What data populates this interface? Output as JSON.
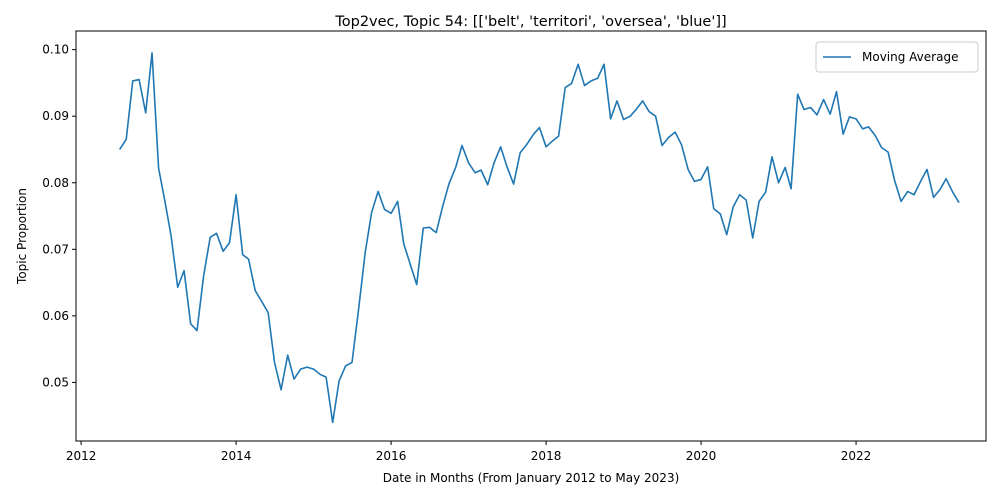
{
  "chart_data": {
    "type": "line",
    "title": "Top2vec, Topic 54: [['belt', 'territori', 'oversea', 'blue']]",
    "xlabel": "Date in Months (From January 2012 to May 2023)",
    "ylabel": "Topic Proportion",
    "xlim": [
      "2011-12-08",
      "2023-09-05"
    ],
    "ylim": [
      0.0412,
      0.1028
    ],
    "x_ticks": [
      "2012",
      "2014",
      "2016",
      "2018",
      "2020",
      "2022"
    ],
    "y_ticks": [
      "0.05",
      "0.06",
      "0.07",
      "0.08",
      "0.09",
      "0.10"
    ],
    "grid": false,
    "legend_position": "top-right",
    "color": "#1f77b4",
    "series": [
      {
        "name": "Moving Average",
        "x": [
          "2012-07",
          "2012-08",
          "2012-09",
          "2012-10",
          "2012-11",
          "2012-12",
          "2013-01",
          "2013-02",
          "2013-03",
          "2013-04",
          "2013-05",
          "2013-06",
          "2013-07",
          "2013-08",
          "2013-09",
          "2013-10",
          "2013-11",
          "2013-12",
          "2014-01",
          "2014-02",
          "2014-03",
          "2014-04",
          "2014-05",
          "2014-06",
          "2014-07",
          "2014-08",
          "2014-09",
          "2014-10",
          "2014-11",
          "2014-12",
          "2015-01",
          "2015-02",
          "2015-03",
          "2015-04",
          "2015-05",
          "2015-06",
          "2015-07",
          "2015-08",
          "2015-09",
          "2015-10",
          "2015-11",
          "2015-12",
          "2016-01",
          "2016-02",
          "2016-03",
          "2016-04",
          "2016-05",
          "2016-06",
          "2016-07",
          "2016-08",
          "2016-09",
          "2016-10",
          "2016-11",
          "2016-12",
          "2017-01",
          "2017-02",
          "2017-03",
          "2017-04",
          "2017-05",
          "2017-06",
          "2017-07",
          "2017-08",
          "2017-09",
          "2017-10",
          "2017-11",
          "2017-12",
          "2018-01",
          "2018-02",
          "2018-03",
          "2018-04",
          "2018-05",
          "2018-06",
          "2018-07",
          "2018-08",
          "2018-09",
          "2018-10",
          "2018-11",
          "2018-12",
          "2019-01",
          "2019-02",
          "2019-03",
          "2019-04",
          "2019-05",
          "2019-06",
          "2019-07",
          "2019-08",
          "2019-09",
          "2019-10",
          "2019-11",
          "2019-12",
          "2020-01",
          "2020-02",
          "2020-03",
          "2020-04",
          "2020-05",
          "2020-06",
          "2020-07",
          "2020-08",
          "2020-09",
          "2020-10",
          "2020-11",
          "2020-12",
          "2021-01",
          "2021-02",
          "2021-03",
          "2021-04",
          "2021-05",
          "2021-06",
          "2021-07",
          "2021-08",
          "2021-09",
          "2021-10",
          "2021-11",
          "2021-12",
          "2022-01",
          "2022-02",
          "2022-03",
          "2022-04",
          "2022-05",
          "2022-06",
          "2022-07",
          "2022-08",
          "2022-09",
          "2022-10",
          "2022-11",
          "2022-12",
          "2023-01",
          "2023-02",
          "2023-03",
          "2023-04",
          "2023-05"
        ],
        "values": [
          0.085,
          0.0865,
          0.0953,
          0.0955,
          0.0905,
          0.0995,
          0.0822,
          0.077,
          0.072,
          0.0643,
          0.0668,
          0.0588,
          0.0578,
          0.066,
          0.0718,
          0.0724,
          0.0697,
          0.071,
          0.0782,
          0.0692,
          0.0685,
          0.0638,
          0.0622,
          0.0605,
          0.053,
          0.0489,
          0.0541,
          0.0505,
          0.052,
          0.0523,
          0.052,
          0.0512,
          0.0508,
          0.044,
          0.0502,
          0.0525,
          0.053,
          0.061,
          0.0695,
          0.0755,
          0.0787,
          0.076,
          0.0754,
          0.0772,
          0.0708,
          0.0677,
          0.0647,
          0.0732,
          0.0733,
          0.0725,
          0.0765,
          0.0799,
          0.0823,
          0.0856,
          0.083,
          0.0815,
          0.0819,
          0.0797,
          0.083,
          0.0854,
          0.0824,
          0.0798,
          0.0845,
          0.0857,
          0.0872,
          0.0883,
          0.0854,
          0.0863,
          0.087,
          0.0943,
          0.0949,
          0.0978,
          0.0946,
          0.0953,
          0.0957,
          0.0978,
          0.0896,
          0.0923,
          0.0895,
          0.09,
          0.091,
          0.0923,
          0.0907,
          0.09,
          0.0856,
          0.0868,
          0.0876,
          0.0857,
          0.082,
          0.0802,
          0.0805,
          0.0824,
          0.0761,
          0.0753,
          0.0722,
          0.0764,
          0.0782,
          0.0774,
          0.0717,
          0.0772,
          0.0786,
          0.0839,
          0.08,
          0.0823,
          0.0791,
          0.0933,
          0.091,
          0.0913,
          0.0902,
          0.0925,
          0.0903,
          0.0937,
          0.0873,
          0.0899,
          0.0896,
          0.0881,
          0.0884,
          0.0871,
          0.0853,
          0.0846,
          0.0804,
          0.0772,
          0.0787,
          0.0782,
          0.0802,
          0.082,
          0.0778,
          0.079,
          0.0806,
          0.0786,
          0.077
        ]
      }
    ]
  }
}
